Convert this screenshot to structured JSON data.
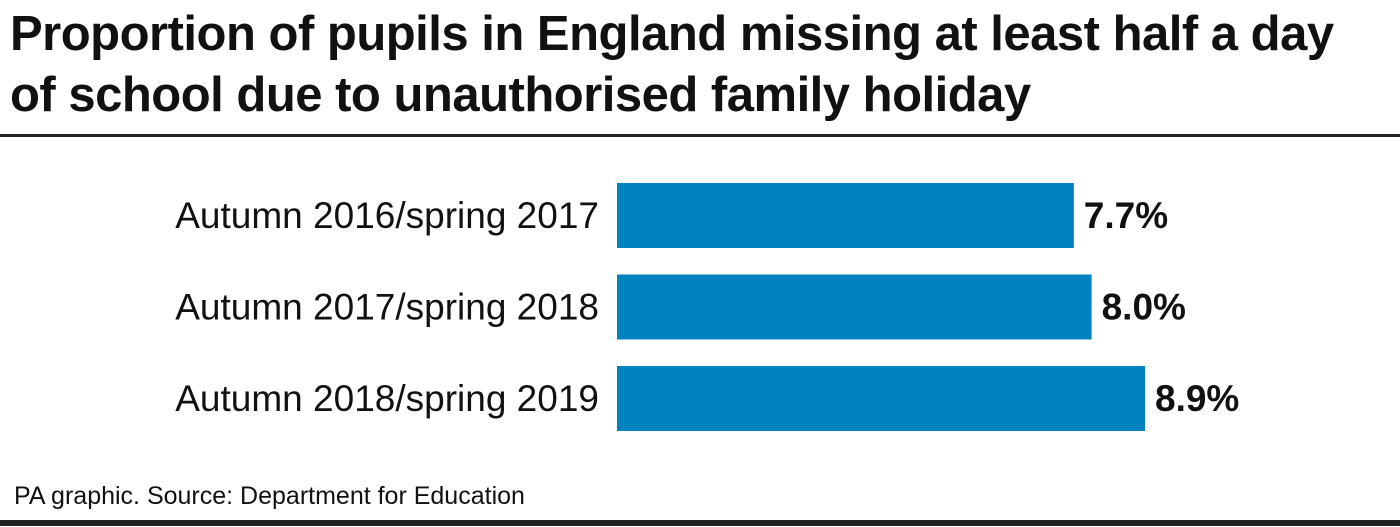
{
  "title": "Proportion of pupils in England missing at least half a day of school due to unauthorised family holiday",
  "source": "PA graphic. Source: Department for Education",
  "colors": {
    "bar": "#0082be",
    "text": "#111111",
    "rule": "#222222"
  },
  "chart_data": {
    "type": "bar",
    "orientation": "horizontal",
    "categories": [
      "Autumn 2016/spring 2017",
      "Autumn 2017/spring 2018",
      "Autumn 2018/spring 2019"
    ],
    "values": [
      7.7,
      8.0,
      8.9
    ],
    "value_labels": [
      "7.7%",
      "8.0%",
      "8.9%"
    ],
    "unit": "%",
    "xlim": [
      0,
      10
    ],
    "grid": false,
    "legend": "none"
  }
}
